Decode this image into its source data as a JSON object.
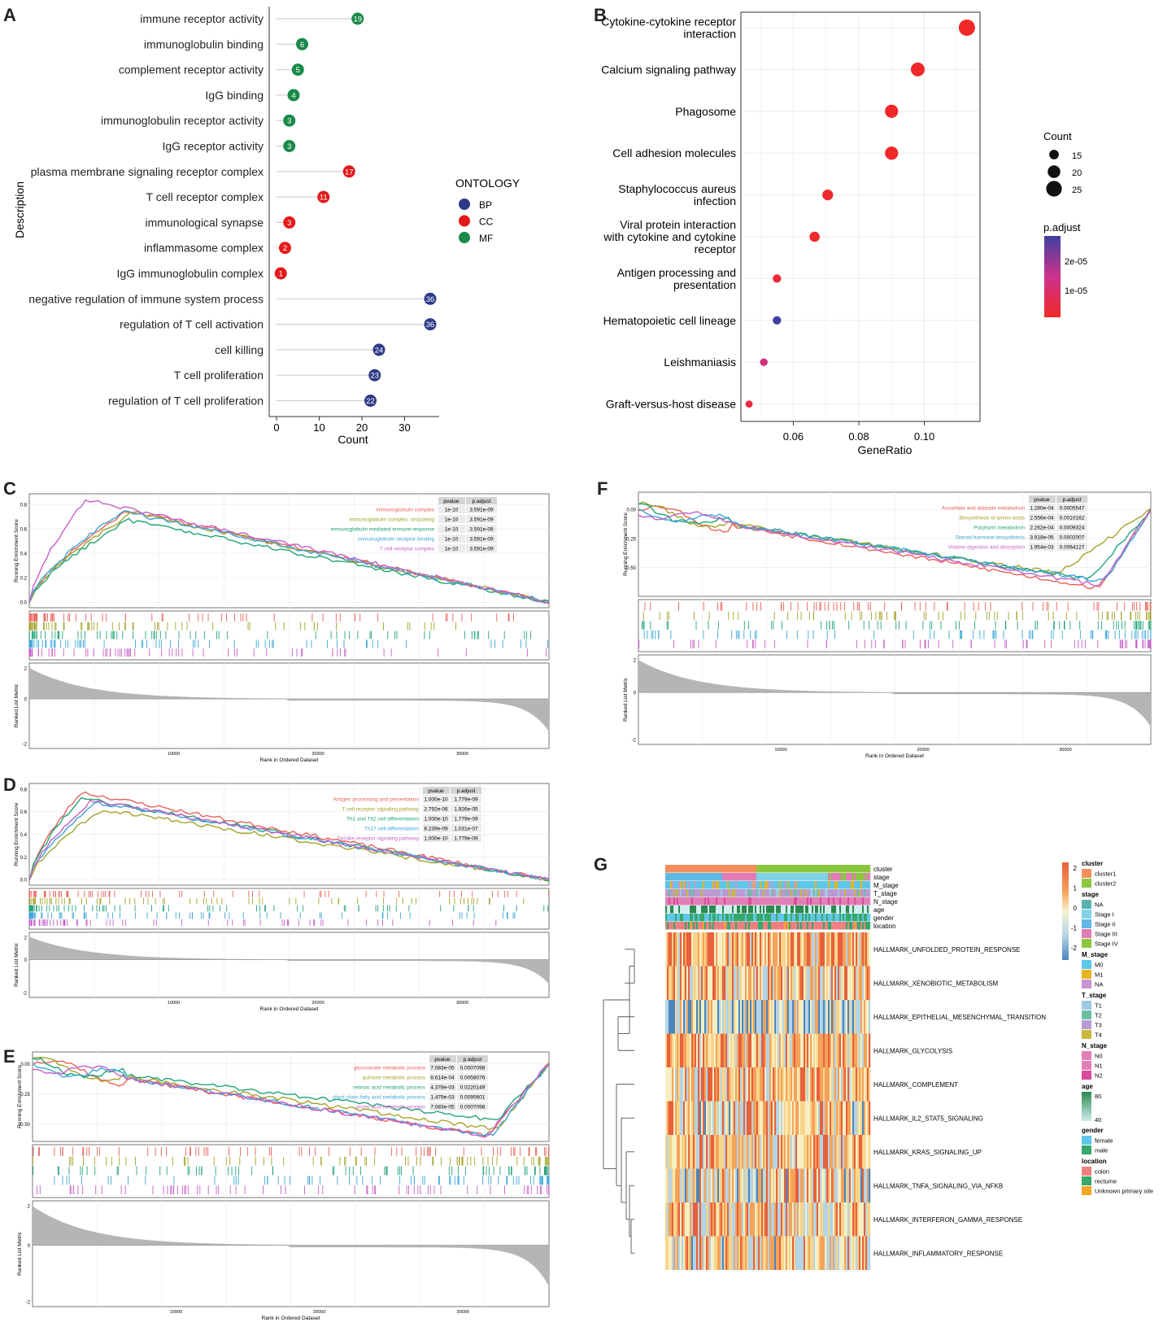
{
  "panels": {
    "a": "A",
    "b": "B",
    "c": "C",
    "d": "D",
    "e": "E",
    "f": "F",
    "g": "G"
  },
  "chart_data": [
    {
      "panel": "A",
      "type": "lollipop",
      "xlabel": "Count",
      "ylabel": "Description",
      "xlim": [
        0,
        37
      ],
      "xticks": [
        0,
        10,
        20,
        30
      ],
      "legend": {
        "title": "ONTOLOGY",
        "items": [
          {
            "name": "BP",
            "color": "#2e3a87"
          },
          {
            "name": "CC",
            "color": "#e31a1c"
          },
          {
            "name": "MF",
            "color": "#1a8a4a"
          }
        ]
      },
      "rows": [
        {
          "label": "immune receptor activity",
          "value": 19,
          "group": "MF"
        },
        {
          "label": "immunoglobulin binding",
          "value": 6,
          "group": "MF"
        },
        {
          "label": "complement receptor activity",
          "value": 5,
          "group": "MF"
        },
        {
          "label": "IgG binding",
          "value": 4,
          "group": "MF"
        },
        {
          "label": "immunoglobulin receptor activity",
          "value": 3,
          "group": "MF"
        },
        {
          "label": "IgG receptor activity",
          "value": 3,
          "group": "MF"
        },
        {
          "label": "plasma membrane signaling receptor complex",
          "value": 17,
          "group": "CC"
        },
        {
          "label": "T cell receptor complex",
          "value": 11,
          "group": "CC"
        },
        {
          "label": "immunological synapse",
          "value": 3,
          "group": "CC"
        },
        {
          "label": "inflammasome complex",
          "value": 2,
          "group": "CC"
        },
        {
          "label": "IgG immunoglobulin complex",
          "value": 1,
          "group": "CC"
        },
        {
          "label": "negative regulation of immune system process",
          "value": 36,
          "group": "BP"
        },
        {
          "label": "regulation of T cell activation",
          "value": 36,
          "group": "BP"
        },
        {
          "label": "cell killing",
          "value": 24,
          "group": "BP"
        },
        {
          "label": "T cell proliferation",
          "value": 23,
          "group": "BP"
        },
        {
          "label": "regulation of T cell proliferation",
          "value": 22,
          "group": "BP"
        }
      ]
    },
    {
      "panel": "B",
      "type": "scatter",
      "xlabel": "GeneRatio",
      "xlim": [
        0.044,
        0.117
      ],
      "xticks": [
        "0.06",
        "0.08",
        "0.10"
      ],
      "size_legend": {
        "title": "Count",
        "values": [
          15,
          20,
          25
        ]
      },
      "color_legend": {
        "title": "p.adjust",
        "ticks": [
          "2e-05",
          "1e-05"
        ]
      },
      "points": [
        {
          "label": "Cytokine-cytokine receptor interaction",
          "lines": [
            "Cytokine-cytokine receptor",
            "interaction"
          ],
          "x": 0.113,
          "count": 26,
          "padj": 0.0
        },
        {
          "label": "Calcium signaling pathway",
          "lines": [
            "Calcium signaling pathway"
          ],
          "x": 0.098,
          "count": 22,
          "padj": 0.0
        },
        {
          "label": "Phagosome",
          "lines": [
            "Phagosome"
          ],
          "x": 0.09,
          "count": 21,
          "padj": 0.0
        },
        {
          "label": "Cell adhesion molecules",
          "lines": [
            "Cell adhesion molecules"
          ],
          "x": 0.09,
          "count": 21,
          "padj": 0.0
        },
        {
          "label": "Staphylococcus aureus infection",
          "lines": [
            "Staphylococcus aureus",
            "infection"
          ],
          "x": 0.0705,
          "count": 17,
          "padj": 1e-06
        },
        {
          "label": "Viral protein interaction with cytokine and cytokine receptor",
          "lines": [
            "Viral protein interaction",
            "with cytokine and cytokine",
            "receptor"
          ],
          "x": 0.0665,
          "count": 16,
          "padj": 1e-06
        },
        {
          "label": "Antigen processing and presentation",
          "lines": [
            "Antigen processing and",
            "presentation"
          ],
          "x": 0.055,
          "count": 13,
          "padj": 2e-06
        },
        {
          "label": "Hematopoietic cell lineage",
          "lines": [
            "Hematopoietic cell lineage"
          ],
          "x": 0.055,
          "count": 13,
          "padj": 2.8e-05
        },
        {
          "label": "Leishmaniasis",
          "lines": [
            "Leishmaniasis"
          ],
          "x": 0.051,
          "count": 12,
          "padj": 1.2e-05
        },
        {
          "label": "Graft-versus-host disease",
          "lines": [
            "Graft-versus-host disease"
          ],
          "x": 0.0465,
          "count": 11,
          "padj": 3e-06
        }
      ]
    },
    {
      "panel": "C",
      "type": "line",
      "ylabel": "Running Enrichment Score",
      "ylabel2": "Ranked List Metric",
      "xlabel": "Rank in Ordered Dataset",
      "xticks": [
        "10000",
        "20000",
        "30000"
      ],
      "yticks": [
        "0.8",
        "0.6",
        "0.4",
        "0.2",
        "0.0"
      ],
      "y2ticks": [
        "2",
        "0",
        "-2"
      ],
      "table_headers": [
        "pvalue",
        "p.adjust"
      ],
      "series": [
        {
          "name": "immunoglobulin complex",
          "pvalue": "1e-10",
          "padj": "3.591e-09",
          "color": "#e8615a",
          "peak": 0.75,
          "peakAt": 0.19
        },
        {
          "name": "immunoglobulin complex, circulating",
          "pvalue": "1e-10",
          "padj": "3.591e-09",
          "color": "#a3a32a",
          "peak": 0.73,
          "peakAt": 0.2
        },
        {
          "name": "immunoglobulin mediated immune response",
          "pvalue": "1e-10",
          "padj": "3.591e-09",
          "color": "#22a37a",
          "peak": 0.67,
          "peakAt": 0.19
        },
        {
          "name": "immunoglobulin receptor binding",
          "pvalue": "1e-10",
          "padj": "3.591e-09",
          "color": "#3aa6d8",
          "peak": 0.74,
          "peakAt": 0.18
        },
        {
          "name": "T cell receptor complex",
          "pvalue": "1e-10",
          "padj": "3.591e-09",
          "color": "#c65fc9",
          "peak": 0.84,
          "peakAt": 0.11
        }
      ]
    },
    {
      "panel": "D",
      "type": "line",
      "ylabel": "Running Enrichment Score",
      "ylabel2": "Ranked List Metric",
      "xlabel": "Rank in Ordered Dataset",
      "xticks": [
        "10000",
        "20000",
        "30000"
      ],
      "yticks": [
        "0.8",
        "0.6",
        "0.4",
        "0.2",
        "0.0"
      ],
      "y2ticks": [
        "2",
        "0",
        "-2"
      ],
      "table_headers": [
        "pvalue",
        "p.adjust"
      ],
      "series": [
        {
          "name": "Antigen processing and presentation",
          "pvalue": "1.000e-10",
          "padj": "1.779e-09",
          "color": "#e8615a",
          "peak": 0.77,
          "peakAt": 0.1
        },
        {
          "name": "T cell receptor signaling pathway",
          "pvalue": "2.792e-06",
          "padj": "1.926e-05",
          "color": "#a3a32a",
          "peak": 0.62,
          "peakAt": 0.14
        },
        {
          "name": "Th1 and Th2 cell differentiation",
          "pvalue": "1.000e-10",
          "padj": "1.779e-09",
          "color": "#22a37a",
          "peak": 0.72,
          "peakAt": 0.1
        },
        {
          "name": "Th17 cell differentiation",
          "pvalue": "8.239e-09",
          "padj": "1.031e-07",
          "color": "#3aa6d8",
          "peak": 0.68,
          "peakAt": 0.13
        },
        {
          "name": "Toll-like receptor signaling pathway",
          "pvalue": "1.000e-10",
          "padj": "1.779e-09",
          "color": "#c65fc9",
          "peak": 0.7,
          "peakAt": 0.12
        }
      ]
    },
    {
      "panel": "E",
      "type": "line",
      "ylabel": "Running Enrichment Score",
      "ylabel2": "Ranked List Metric",
      "xlabel": "Rank in Ordered Dataset",
      "xticks": [
        "10000",
        "20000",
        "30000"
      ],
      "yticks": [
        "0.00",
        "-0.25",
        "-0.50"
      ],
      "y2ticks": [
        "2",
        "0",
        "-2"
      ],
      "table_headers": [
        "pvalue",
        "p.adjust"
      ],
      "series": [
        {
          "name": "glucuronate metabolic process",
          "pvalue": "7.083e-05",
          "padj": "0.0007098",
          "color": "#e8615a",
          "peak": -0.6,
          "peakAt": 0.88
        },
        {
          "name": "quinone metabolic process",
          "pvalue": "8.614e-04",
          "padj": "0.0058076",
          "color": "#a3a32a",
          "peak": -0.55,
          "peakAt": 0.9
        },
        {
          "name": "retinoic acid metabolic process",
          "pvalue": "4.378e-03",
          "padj": "0.0220149",
          "color": "#22a37a",
          "peak": -0.47,
          "peakAt": 0.9
        },
        {
          "name": "short-chain fatty acid metabolic process",
          "pvalue": "1.479e-03",
          "padj": "0.0090601",
          "color": "#3aa6d8",
          "peak": -0.6,
          "peakAt": 0.89
        },
        {
          "name": "uronic acid metabolic process",
          "pvalue": "7.083e-05",
          "padj": "0.0007098",
          "color": "#c65fc9",
          "peak": -0.6,
          "peakAt": 0.88
        }
      ]
    },
    {
      "panel": "F",
      "type": "line",
      "ylabel": "Running Enrichment Score",
      "ylabel2": "Ranked List Metric",
      "xlabel": "Rank in Ordered Dataset",
      "xticks": [
        "10000",
        "20000",
        "30000"
      ],
      "yticks": [
        "0.00",
        "-0.25",
        "-0.50"
      ],
      "y2ticks": [
        "2",
        "0",
        "-2"
      ],
      "table_headers": [
        "pvalue",
        "p.adjust"
      ],
      "series": [
        {
          "name": "Ascorbate and aldarate metabolism",
          "pvalue": "1.280e-04",
          "padj": "0.0005547",
          "color": "#e8615a",
          "peak": -0.68,
          "peakAt": 0.9
        },
        {
          "name": "Biosynthesis of amino acids",
          "pvalue": "2.556e-04",
          "padj": "0.0010162",
          "color": "#a3a32a",
          "peak": -0.55,
          "peakAt": 0.82
        },
        {
          "name": "Porphyrin metabolism",
          "pvalue": "2.262e-04",
          "padj": "0.0009324",
          "color": "#22a37a",
          "peak": -0.6,
          "peakAt": 0.88
        },
        {
          "name": "Steroid hormone biosynthesis",
          "pvalue": "3.918e-05",
          "padj": "0.0002007",
          "color": "#3aa6d8",
          "peak": -0.62,
          "peakAt": 0.91
        },
        {
          "name": "Vitamin digestion and absorption",
          "pvalue": "1.954e-03",
          "padj": "0.0064127",
          "color": "#c65fc9",
          "peak": -0.65,
          "peakAt": 0.9
        }
      ]
    },
    {
      "panel": "G",
      "type": "heatmap",
      "annotation_rows": [
        "cluster",
        "stage",
        "M_stage",
        "T_stage",
        "N_stage",
        "age",
        "gender",
        "location"
      ],
      "rows": [
        "HALLMARK_UNFOLDED_PROTEIN_RESPONSE",
        "HALLMARK_XENOBIOTIC_METABOLISM",
        "HALLMARK_EPITHELIAL_MESENCHYMAL_TRANSITION",
        "HALLMARK_GLYCOLYSIS",
        "HALLMARK_COMPLEMENT",
        "HALLMARK_IL2_STAT5_SIGNALING",
        "HALLMARK_KRAS_SIGNALING_UP",
        "HALLMARK_TNFA_SIGNALING_VIA_NFKB",
        "HALLMARK_INTERFERON_GAMMA_RESPONSE",
        "HALLMARK_INFLAMMATORY_RESPONSE"
      ],
      "row_means": [
        0.6,
        0.3,
        -0.4,
        0.5,
        0.4,
        0.1,
        0.3,
        0.0,
        0.2,
        0.1
      ],
      "scale": {
        "ticks": [
          "2",
          "1",
          "0",
          "-1",
          "-2"
        ]
      },
      "legends": [
        {
          "title": "cluster",
          "items": [
            {
              "label": "cluster1",
              "color": "#f28e5b"
            },
            {
              "label": "cluster2",
              "color": "#8cc63f"
            }
          ]
        },
        {
          "title": "stage",
          "items": [
            {
              "label": "NA",
              "color": "#5ab4ac"
            },
            {
              "label": "Stage I",
              "color": "#7fd1e8"
            },
            {
              "label": "Stage II",
              "color": "#5fb8e6"
            },
            {
              "label": "Stage III",
              "color": "#e07bb5"
            },
            {
              "label": "Stage IV",
              "color": "#8cc63f"
            }
          ]
        },
        {
          "title": "M_stage",
          "items": [
            {
              "label": "M0",
              "color": "#5ec7e8"
            },
            {
              "label": "M1",
              "color": "#e6b422"
            },
            {
              "label": "NA",
              "color": "#c895d1"
            }
          ]
        },
        {
          "title": "T_stage",
          "items": [
            {
              "label": "T1",
              "color": "#9ec8e6"
            },
            {
              "label": "T2",
              "color": "#6bbfa3"
            },
            {
              "label": "T3",
              "color": "#b99ad3"
            },
            {
              "label": "T4",
              "color": "#c9b93b"
            }
          ]
        },
        {
          "title": "N_stage",
          "items": [
            {
              "label": "N0",
              "color": "#e37fb7"
            },
            {
              "label": "N1",
              "color": "#e37fb7"
            },
            {
              "label": "N2",
              "color": "#d94a9c"
            }
          ]
        },
        {
          "title": "age",
          "items": [
            {
              "label": "80",
              "color": "#2b8a4e"
            },
            {
              "label": "40",
              "color": "#cfeef0"
            }
          ]
        },
        {
          "title": "gender",
          "items": [
            {
              "label": "female",
              "color": "#5ec7e8"
            },
            {
              "label": "male",
              "color": "#36a86a"
            }
          ]
        },
        {
          "title": "location",
          "items": [
            {
              "label": "colon",
              "color": "#f08080"
            },
            {
              "label": "rectume",
              "color": "#36a86a"
            },
            {
              "label": "Unknown primary site",
              "color": "#f5a623"
            }
          ]
        }
      ]
    }
  ]
}
